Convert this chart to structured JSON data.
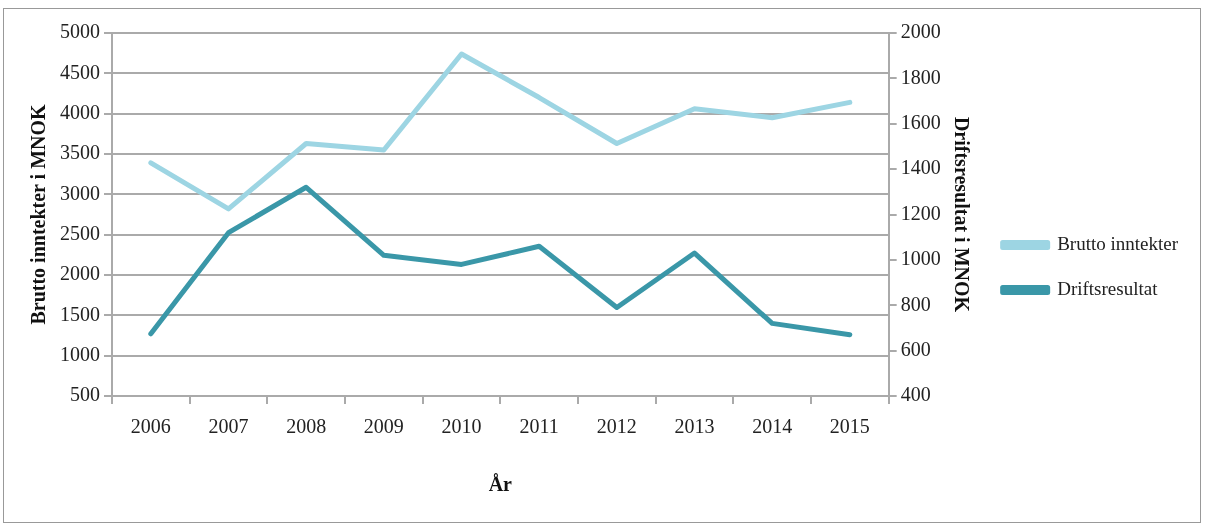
{
  "chart_data": {
    "type": "line",
    "xlabel": "År",
    "ylabel": "Brutto inntekter i MNOK",
    "y2label": "Driftsresultat i MNOK",
    "categories": [
      "2006",
      "2007",
      "2008",
      "2009",
      "2010",
      "2011",
      "2012",
      "2013",
      "2014",
      "2015"
    ],
    "series": [
      {
        "name": "Brutto inntekter",
        "color": "#9dd5e3",
        "values": [
          3390,
          2820,
          3630,
          3550,
          4740,
          4200,
          3630,
          4060,
          3950,
          4140
        ]
      },
      {
        "name": "Driftsresultat",
        "color": "#3a97a8",
        "axis": "y2",
        "values": [
          674,
          1120,
          1320,
          1020,
          980,
          1060,
          790,
          1030,
          720,
          670
        ]
      }
    ],
    "ylim": [
      500,
      5000
    ],
    "yticks": [
      500,
      1000,
      1500,
      2000,
      2500,
      3000,
      3500,
      4000,
      4500,
      5000
    ],
    "y2lim": [
      400,
      2000
    ],
    "y2ticks": [
      400,
      600,
      800,
      1000,
      1200,
      1400,
      1600,
      1800,
      2000
    ],
    "grid": "y",
    "legend": "right",
    "marker": "none",
    "line_style": "solid"
  }
}
